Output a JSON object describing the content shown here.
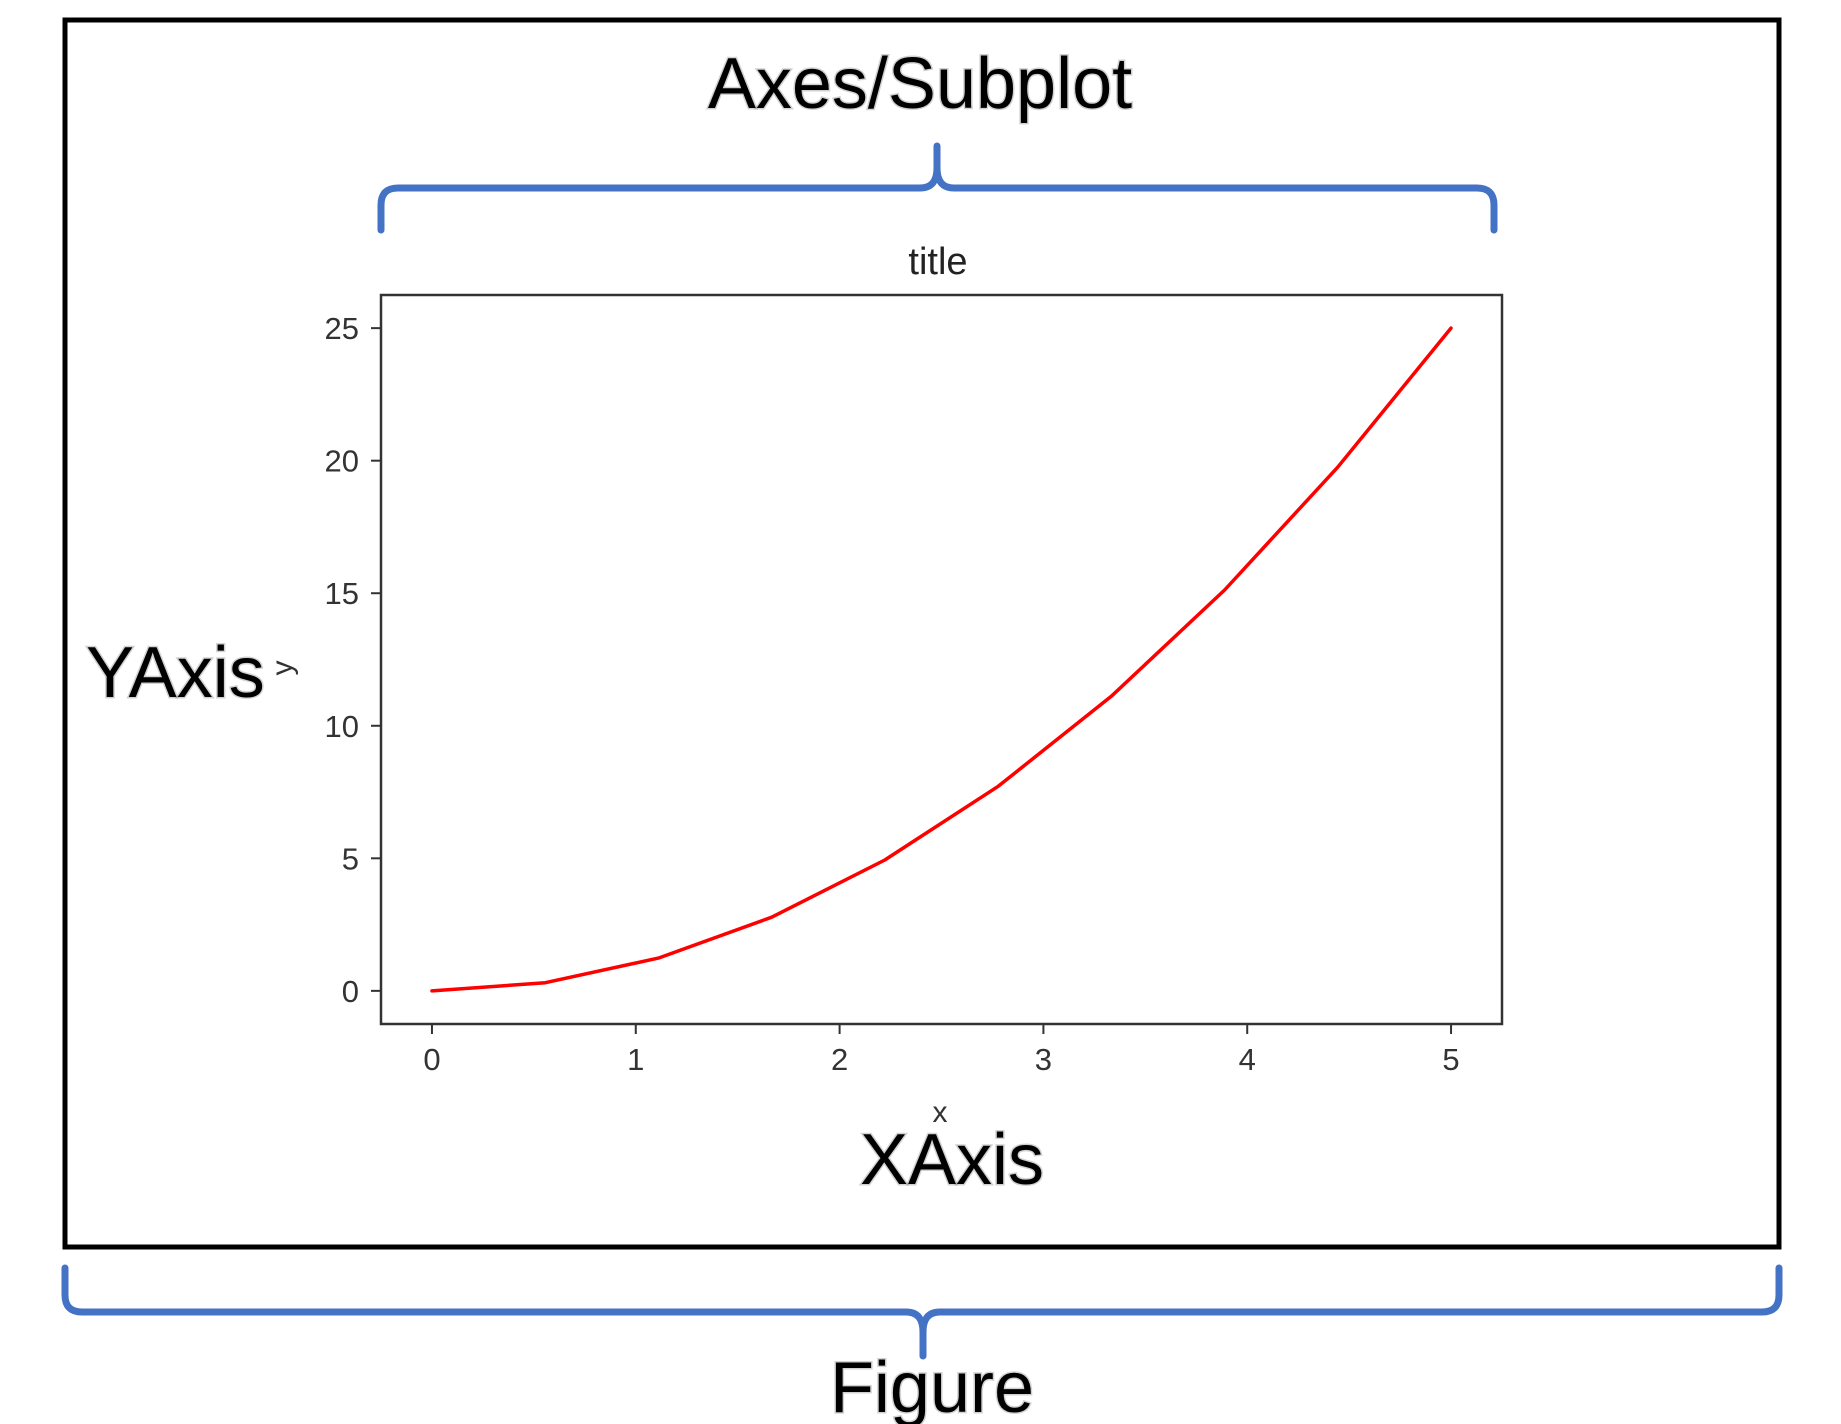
{
  "labels": {
    "axes_subplot": "Axes/Subplot",
    "figure": "Figure",
    "y_axis": "YAxis",
    "x_axis": "XAxis"
  },
  "colors": {
    "brace": "#4472c4",
    "figure_border": "#000000",
    "line": "#ff0000"
  },
  "chart_data": {
    "type": "line",
    "title": "title",
    "xlabel": "x",
    "ylabel": "y",
    "xlim": [
      -0.25,
      5.25
    ],
    "ylim": [
      -1.25,
      26.25
    ],
    "xticks": [
      0,
      1,
      2,
      3,
      4,
      5
    ],
    "yticks": [
      0,
      5,
      10,
      15,
      20,
      25
    ],
    "grid": false,
    "series": [
      {
        "color": "#ff0000",
        "x": [
          0,
          0.556,
          1.111,
          1.667,
          2.222,
          2.778,
          3.333,
          3.889,
          4.444,
          5.0
        ],
        "y": [
          0,
          0.309,
          1.235,
          2.778,
          4.938,
          7.716,
          11.111,
          15.123,
          19.753,
          25.0
        ]
      }
    ]
  }
}
